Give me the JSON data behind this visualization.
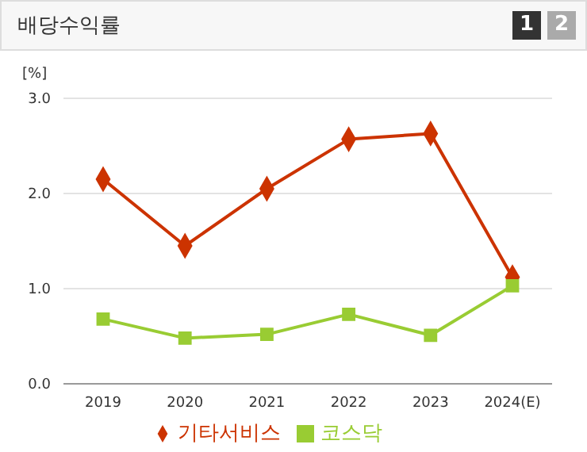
{
  "chart_data": {
    "type": "line",
    "title": "배당수익률",
    "ylabel": "[%]",
    "annotations": [
      "1",
      "2"
    ],
    "categories": [
      "2019",
      "2020",
      "2021",
      "2022",
      "2023",
      "2024(E)"
    ],
    "series": [
      {
        "name": "기타서비스",
        "color": "#cc3300",
        "marker": "diamond",
        "values": [
          2.15,
          1.45,
          2.05,
          2.57,
          2.63,
          1.12
        ]
      },
      {
        "name": "코스닥",
        "color": "#99cc33",
        "marker": "square",
        "values": [
          0.68,
          0.48,
          0.52,
          0.73,
          0.51,
          1.03
        ]
      }
    ],
    "ylim": [
      0,
      3
    ],
    "yticks": [
      {
        "value": 0,
        "label": "0.0"
      },
      {
        "value": 1,
        "label": "1.0"
      },
      {
        "value": 2,
        "label": "2.0"
      },
      {
        "value": 3,
        "label": "3.0"
      }
    ],
    "grid": "y",
    "legend": "bottom",
    "line_style": "solid"
  }
}
